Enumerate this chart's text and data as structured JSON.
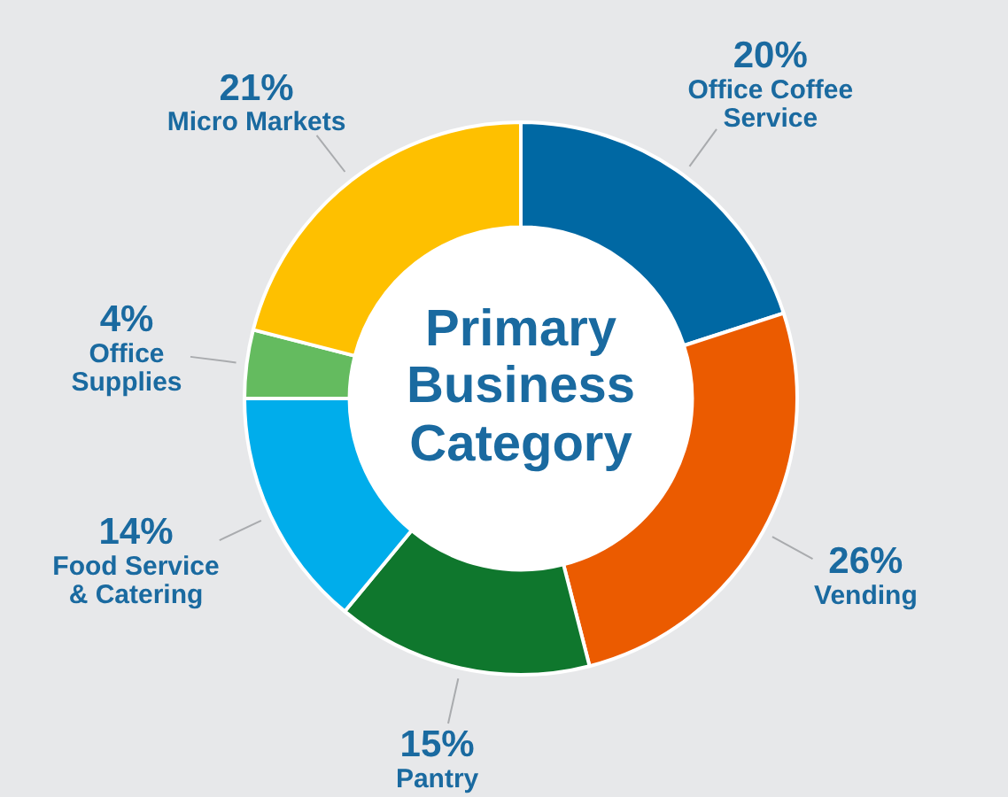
{
  "chart_data": {
    "type": "donut",
    "title": "Primary Business Category",
    "categories": [
      "Office Coffee Service",
      "Vending",
      "Pantry",
      "Food Service & Catering",
      "Office Supplies",
      "Micro Markets"
    ],
    "values": [
      20,
      26,
      15,
      14,
      4,
      21
    ],
    "colors": [
      "#0068a3",
      "#eb5b00",
      "#0f772d",
      "#00adeb",
      "#64bb5f",
      "#fec000"
    ],
    "value_labels": [
      "20%",
      "26%",
      "15%",
      "14%",
      "4%",
      "21%"
    ],
    "legend": false
  }
}
